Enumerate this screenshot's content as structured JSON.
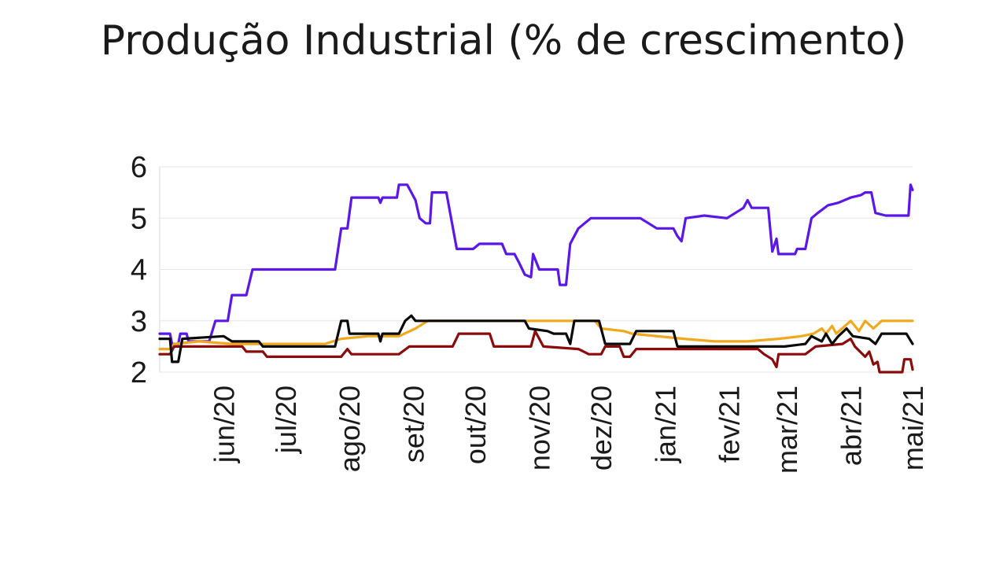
{
  "chart_data": {
    "type": "line",
    "title": "Produção Industrial (% de crescimento)",
    "xlabel": "",
    "ylabel": "",
    "ylim": [
      2,
      6
    ],
    "yticks": [
      2,
      3,
      4,
      5,
      6
    ],
    "xlim": [
      "2020-05-01",
      "2021-05-01"
    ],
    "x_ticks": [
      {
        "label": "jun/20",
        "date": "2020-06-01"
      },
      {
        "label": "jul/20",
        "date": "2020-07-01"
      },
      {
        "label": "ago/20",
        "date": "2020-08-01"
      },
      {
        "label": "set/20",
        "date": "2020-09-01"
      },
      {
        "label": "out/20",
        "date": "2020-10-01"
      },
      {
        "label": "nov/20",
        "date": "2020-11-01"
      },
      {
        "label": "dez/20",
        "date": "2020-12-01"
      },
      {
        "label": "jan/21",
        "date": "2021-01-01"
      },
      {
        "label": "fev/21",
        "date": "2021-02-01"
      },
      {
        "label": "mar/21",
        "date": "2021-03-01"
      },
      {
        "label": "abr/21",
        "date": "2021-04-01"
      },
      {
        "label": "mai/21",
        "date": "2021-05-01"
      }
    ],
    "grid": "horizontal",
    "legend": "none",
    "series": [
      {
        "color": "#5b16e8",
        "points": [
          [
            "2020-05-01",
            2.75
          ],
          [
            "2020-05-06",
            2.75
          ],
          [
            "2020-05-07",
            2.55
          ],
          [
            "2020-05-10",
            2.55
          ],
          [
            "2020-05-11",
            2.75
          ],
          [
            "2020-05-14",
            2.75
          ],
          [
            "2020-05-15",
            2.6
          ],
          [
            "2020-05-25",
            2.6
          ],
          [
            "2020-05-28",
            3.0
          ],
          [
            "2020-06-03",
            3.0
          ],
          [
            "2020-06-05",
            3.5
          ],
          [
            "2020-06-12",
            3.5
          ],
          [
            "2020-06-15",
            4.0
          ],
          [
            "2020-07-10",
            4.0
          ],
          [
            "2020-07-25",
            4.0
          ],
          [
            "2020-07-28",
            4.8
          ],
          [
            "2020-07-31",
            4.8
          ],
          [
            "2020-08-02",
            5.4
          ],
          [
            "2020-08-15",
            5.4
          ],
          [
            "2020-08-16",
            5.3
          ],
          [
            "2020-08-17",
            5.4
          ],
          [
            "2020-08-24",
            5.4
          ],
          [
            "2020-08-25",
            5.65
          ],
          [
            "2020-08-29",
            5.65
          ],
          [
            "2020-08-31",
            5.5
          ],
          [
            "2020-09-02",
            5.35
          ],
          [
            "2020-09-04",
            5.0
          ],
          [
            "2020-09-07",
            4.9
          ],
          [
            "2020-09-09",
            4.9
          ],
          [
            "2020-09-10",
            5.5
          ],
          [
            "2020-09-17",
            5.5
          ],
          [
            "2020-09-22",
            4.4
          ],
          [
            "2020-09-30",
            4.4
          ],
          [
            "2020-10-03",
            4.5
          ],
          [
            "2020-10-14",
            4.5
          ],
          [
            "2020-10-16",
            4.3
          ],
          [
            "2020-10-20",
            4.3
          ],
          [
            "2020-10-22",
            4.15
          ],
          [
            "2020-10-25",
            3.9
          ],
          [
            "2020-10-28",
            3.85
          ],
          [
            "2020-10-29",
            4.3
          ],
          [
            "2020-11-01",
            4.0
          ],
          [
            "2020-11-10",
            4.0
          ],
          [
            "2020-11-11",
            3.7
          ],
          [
            "2020-11-14",
            3.7
          ],
          [
            "2020-11-16",
            4.5
          ],
          [
            "2020-11-20",
            4.8
          ],
          [
            "2020-11-26",
            5.0
          ],
          [
            "2020-12-20",
            5.0
          ],
          [
            "2020-12-28",
            4.8
          ],
          [
            "2021-01-05",
            4.8
          ],
          [
            "2021-01-07",
            4.65
          ],
          [
            "2021-01-09",
            4.55
          ],
          [
            "2021-01-11",
            5.0
          ],
          [
            "2021-01-20",
            5.05
          ],
          [
            "2021-01-31",
            5.0
          ],
          [
            "2021-02-08",
            5.2
          ],
          [
            "2021-02-10",
            5.35
          ],
          [
            "2021-02-12",
            5.2
          ],
          [
            "2021-02-20",
            5.2
          ],
          [
            "2021-02-22",
            4.35
          ],
          [
            "2021-02-24",
            4.6
          ],
          [
            "2021-02-25",
            4.3
          ],
          [
            "2021-03-05",
            4.3
          ],
          [
            "2021-03-06",
            4.4
          ],
          [
            "2021-03-10",
            4.4
          ],
          [
            "2021-03-13",
            5.0
          ],
          [
            "2021-03-16",
            5.1
          ],
          [
            "2021-03-21",
            5.25
          ],
          [
            "2021-03-26",
            5.3
          ],
          [
            "2021-04-01",
            5.4
          ],
          [
            "2021-04-06",
            5.45
          ],
          [
            "2021-04-08",
            5.5
          ],
          [
            "2021-04-11",
            5.5
          ],
          [
            "2021-04-13",
            5.1
          ],
          [
            "2021-04-18",
            5.05
          ],
          [
            "2021-04-25",
            5.05
          ],
          [
            "2021-04-29",
            5.05
          ],
          [
            "2021-04-30",
            5.65
          ],
          [
            "2021-05-01",
            5.55
          ]
        ]
      },
      {
        "color": "#f2a81d",
        "points": [
          [
            "2020-05-01",
            2.45
          ],
          [
            "2020-05-06",
            2.45
          ],
          [
            "2020-05-08",
            2.55
          ],
          [
            "2020-05-20",
            2.6
          ],
          [
            "2020-06-05",
            2.55
          ],
          [
            "2020-06-20",
            2.55
          ],
          [
            "2020-07-20",
            2.55
          ],
          [
            "2020-07-28",
            2.65
          ],
          [
            "2020-08-10",
            2.7
          ],
          [
            "2020-08-25",
            2.7
          ],
          [
            "2020-09-02",
            2.85
          ],
          [
            "2020-09-08",
            3.0
          ],
          [
            "2020-10-31",
            3.0
          ],
          [
            "2020-11-15",
            3.0
          ],
          [
            "2020-11-28",
            3.0
          ],
          [
            "2020-12-01",
            2.85
          ],
          [
            "2020-12-12",
            2.8
          ],
          [
            "2020-12-16",
            2.75
          ],
          [
            "2021-01-10",
            2.65
          ],
          [
            "2021-01-25",
            2.6
          ],
          [
            "2021-02-10",
            2.6
          ],
          [
            "2021-02-25",
            2.65
          ],
          [
            "2021-03-08",
            2.7
          ],
          [
            "2021-03-14",
            2.75
          ],
          [
            "2021-03-18",
            2.85
          ],
          [
            "2021-03-20",
            2.75
          ],
          [
            "2021-03-23",
            2.9
          ],
          [
            "2021-03-25",
            2.75
          ],
          [
            "2021-04-01",
            3.0
          ],
          [
            "2021-04-05",
            2.8
          ],
          [
            "2021-04-08",
            3.0
          ],
          [
            "2021-04-12",
            2.85
          ],
          [
            "2021-04-16",
            3.0
          ],
          [
            "2021-05-01",
            3.0
          ]
        ]
      },
      {
        "color": "#8b0a0a",
        "points": [
          [
            "2020-05-01",
            2.35
          ],
          [
            "2020-05-06",
            2.35
          ],
          [
            "2020-05-08",
            2.5
          ],
          [
            "2020-05-15",
            2.5
          ],
          [
            "2020-06-10",
            2.5
          ],
          [
            "2020-06-12",
            2.4
          ],
          [
            "2020-06-20",
            2.4
          ],
          [
            "2020-06-22",
            2.3
          ],
          [
            "2020-07-28",
            2.3
          ],
          [
            "2020-07-31",
            2.45
          ],
          [
            "2020-08-02",
            2.35
          ],
          [
            "2020-08-25",
            2.35
          ],
          [
            "2020-08-30",
            2.5
          ],
          [
            "2020-09-20",
            2.5
          ],
          [
            "2020-09-23",
            2.75
          ],
          [
            "2020-10-08",
            2.75
          ],
          [
            "2020-10-10",
            2.5
          ],
          [
            "2020-10-28",
            2.5
          ],
          [
            "2020-10-30",
            2.8
          ],
          [
            "2020-11-03",
            2.5
          ],
          [
            "2020-11-20",
            2.45
          ],
          [
            "2020-11-25",
            2.35
          ],
          [
            "2020-12-01",
            2.35
          ],
          [
            "2020-12-03",
            2.5
          ],
          [
            "2020-12-10",
            2.5
          ],
          [
            "2020-12-12",
            2.3
          ],
          [
            "2020-12-15",
            2.3
          ],
          [
            "2020-12-18",
            2.45
          ],
          [
            "2021-01-18",
            2.45
          ],
          [
            "2021-02-05",
            2.45
          ],
          [
            "2021-02-15",
            2.45
          ],
          [
            "2021-02-18",
            2.35
          ],
          [
            "2021-02-22",
            2.25
          ],
          [
            "2021-02-24",
            2.1
          ],
          [
            "2021-02-25",
            2.35
          ],
          [
            "2021-03-10",
            2.35
          ],
          [
            "2021-03-15",
            2.5
          ],
          [
            "2021-03-28",
            2.55
          ],
          [
            "2021-04-01",
            2.65
          ],
          [
            "2021-04-03",
            2.5
          ],
          [
            "2021-04-08",
            2.3
          ],
          [
            "2021-04-10",
            2.4
          ],
          [
            "2021-04-12",
            2.15
          ],
          [
            "2021-04-14",
            2.2
          ],
          [
            "2021-04-15",
            2.0
          ],
          [
            "2021-04-26",
            2.0
          ],
          [
            "2021-04-27",
            2.25
          ],
          [
            "2021-04-30",
            2.25
          ],
          [
            "2021-05-01",
            2.05
          ]
        ]
      },
      {
        "color": "#0a0a0a",
        "points": [
          [
            "2020-05-01",
            2.65
          ],
          [
            "2020-05-06",
            2.65
          ],
          [
            "2020-05-07",
            2.2
          ],
          [
            "2020-05-10",
            2.2
          ],
          [
            "2020-05-12",
            2.65
          ],
          [
            "2020-06-01",
            2.7
          ],
          [
            "2020-06-05",
            2.6
          ],
          [
            "2020-06-18",
            2.6
          ],
          [
            "2020-06-20",
            2.5
          ],
          [
            "2020-07-25",
            2.5
          ],
          [
            "2020-07-28",
            3.0
          ],
          [
            "2020-07-31",
            3.0
          ],
          [
            "2020-08-01",
            2.75
          ],
          [
            "2020-08-15",
            2.75
          ],
          [
            "2020-08-16",
            2.6
          ],
          [
            "2020-08-17",
            2.75
          ],
          [
            "2020-08-25",
            2.75
          ],
          [
            "2020-08-28",
            3.0
          ],
          [
            "2020-08-31",
            3.1
          ],
          [
            "2020-09-02",
            3.0
          ],
          [
            "2020-10-25",
            3.0
          ],
          [
            "2020-10-27",
            2.85
          ],
          [
            "2020-11-05",
            2.8
          ],
          [
            "2020-11-08",
            2.75
          ],
          [
            "2020-11-14",
            2.75
          ],
          [
            "2020-11-16",
            2.55
          ],
          [
            "2020-11-18",
            3.0
          ],
          [
            "2020-11-30",
            3.0
          ],
          [
            "2020-12-03",
            2.55
          ],
          [
            "2020-12-15",
            2.55
          ],
          [
            "2020-12-18",
            2.8
          ],
          [
            "2021-01-05",
            2.8
          ],
          [
            "2021-01-07",
            2.5
          ],
          [
            "2021-02-28",
            2.5
          ],
          [
            "2021-03-10",
            2.55
          ],
          [
            "2021-03-13",
            2.7
          ],
          [
            "2021-03-18",
            2.6
          ],
          [
            "2021-03-20",
            2.75
          ],
          [
            "2021-03-23",
            2.55
          ],
          [
            "2021-03-26",
            2.7
          ],
          [
            "2021-03-30",
            2.85
          ],
          [
            "2021-04-02",
            2.7
          ],
          [
            "2021-04-10",
            2.65
          ],
          [
            "2021-04-13",
            2.55
          ],
          [
            "2021-04-16",
            2.75
          ],
          [
            "2021-04-28",
            2.75
          ],
          [
            "2021-05-01",
            2.55
          ]
        ]
      }
    ]
  }
}
